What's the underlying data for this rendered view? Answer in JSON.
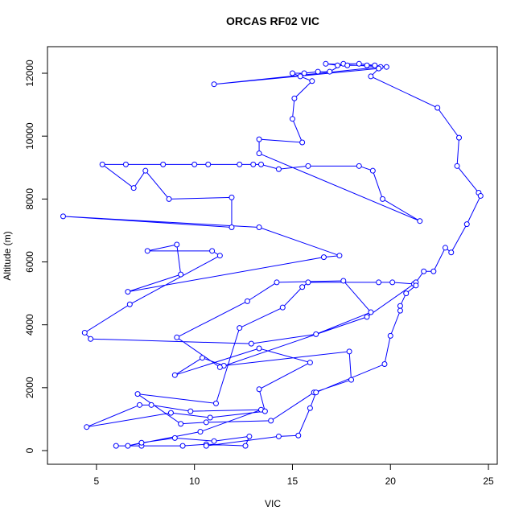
{
  "chart_data": {
    "type": "line",
    "title": "ORCAS RF02 VIC",
    "x_label": "VIC",
    "y_label": "Altitude (m)",
    "color": "#0000ff",
    "markers": true,
    "x": [
      6.0,
      7.3,
      9.4,
      10.6,
      12.6,
      12.8,
      11.0,
      9.0,
      7.3,
      6.6,
      10.3,
      13.4,
      9.8,
      7.8,
      7.2,
      4.5,
      8.8,
      10.8,
      13.6,
      13.3,
      15.9,
      13.3,
      9.0,
      10.4,
      11.5,
      17.9,
      18.0,
      16.1,
      13.9,
      10.6,
      9.3,
      7.1,
      11.1,
      12.3,
      14.5,
      15.5,
      15.8,
      19.4,
      20.1,
      21.2,
      18.8,
      11.3,
      9.1,
      12.7,
      14.2,
      17.6,
      19.0,
      16.2,
      12.9,
      4.7,
      4.4,
      6.7,
      11.3,
      10.9,
      7.6,
      9.1,
      9.3,
      6.6,
      16.6,
      17.4,
      13.3,
      3.3,
      11.9,
      11.9,
      8.7,
      7.5,
      6.9,
      5.3,
      6.5,
      8.4,
      10.0,
      10.7,
      12.3,
      13.0,
      13.4,
      14.3,
      15.8,
      18.4,
      19.1,
      19.6,
      21.5,
      13.3,
      13.3,
      15.5,
      15.0,
      15.1,
      16.0,
      15.4,
      15.0,
      15.6,
      16.3,
      16.9,
      17.6,
      18.4,
      19.2,
      19.8,
      16.7,
      17.3,
      17.8,
      18.8,
      19.5,
      11.0,
      19.4,
      19.0,
      22.4,
      23.5,
      23.4,
      24.5,
      24.6,
      23.9,
      23.1,
      22.8,
      22.2,
      21.7,
      21.3,
      21.3,
      20.8,
      20.5,
      20.5,
      20.0,
      19.7,
      16.2,
      15.9,
      15.3,
      14.3,
      10.6
    ],
    "values": [
      150,
      150,
      150,
      200,
      150,
      450,
      300,
      400,
      250,
      150,
      600,
      1300,
      1250,
      1450,
      1450,
      750,
      1200,
      1050,
      1250,
      1950,
      2800,
      3250,
      2400,
      2950,
      2700,
      3150,
      2250,
      1850,
      950,
      900,
      850,
      1800,
      1500,
      3900,
      4550,
      5200,
      5350,
      5350,
      5350,
      5300,
      4250,
      2650,
      3600,
      4750,
      5350,
      5400,
      4400,
      3700,
      3400,
      3550,
      3750,
      4650,
      6200,
      6350,
      6350,
      6550,
      5600,
      5050,
      6150,
      6200,
      7100,
      7450,
      7100,
      8050,
      8000,
      8900,
      8350,
      9100,
      9100,
      9100,
      9100,
      9100,
      9100,
      9100,
      9100,
      8950,
      9050,
      9050,
      8900,
      8000,
      7300,
      9450,
      9900,
      9800,
      10550,
      11200,
      11750,
      11900,
      12000,
      12000,
      12050,
      12050,
      12300,
      12300,
      12250,
      12200,
      12300,
      12250,
      12250,
      12250,
      12200,
      11650,
      12150,
      11900,
      10900,
      9950,
      9050,
      8200,
      8100,
      7200,
      6300,
      6450,
      5700,
      5700,
      5350,
      5250,
      5000,
      4600,
      4450,
      3650,
      2750,
      1850,
      1350,
      480,
      450,
      150
    ],
    "xlim": [
      2.5,
      25.45
    ],
    "ylim": [
      -435,
      12845
    ],
    "xticks": [
      5,
      10,
      15,
      20,
      25
    ],
    "yticks": [
      0,
      2000,
      4000,
      6000,
      8000,
      10000,
      12000
    ]
  }
}
